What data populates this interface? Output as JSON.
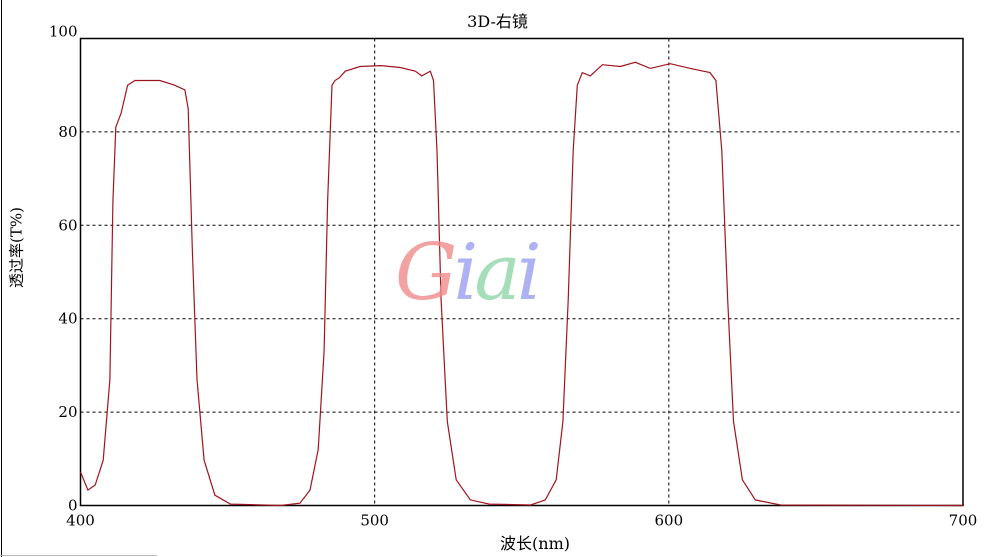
{
  "chart_data": {
    "type": "line",
    "title": "3D-右镜",
    "xlabel": "波长(nm)",
    "ylabel": "透过率(T%)",
    "xlim": [
      400,
      700
    ],
    "ylim": [
      0,
      100
    ],
    "xticks": [
      400,
      500,
      600,
      700
    ],
    "yticks": [
      0,
      20,
      40,
      60,
      80,
      100
    ],
    "grid": "dashed",
    "line_color": "#a0141e",
    "series": [
      {
        "x": [
          400,
          402.5,
          405,
          407.7,
          410,
          411,
          412,
          413.8,
          416,
          418.5,
          427,
          432,
          435.5,
          436.6,
          438,
          439.6,
          442,
          445.7,
          451,
          468,
          474.6,
          478,
          480.8,
          482.8,
          484,
          485.5,
          486.5,
          488,
          490,
          495,
          502,
          508.7,
          513.8,
          516,
          518.9,
          520,
          521.2,
          522.6,
          524.7,
          527.7,
          532.5,
          539,
          553,
          558,
          561.7,
          564,
          565.8,
          567.5,
          568.9,
          570.6,
          573.3,
          577.4,
          583.5,
          588.6,
          593.7,
          600.5,
          607.3,
          614,
          616,
          618,
          620,
          622,
          625,
          629.4,
          638,
          700
        ],
        "y": [
          7.2,
          3.3,
          4.4,
          9.7,
          27,
          65,
          81,
          84,
          90,
          91,
          91,
          90,
          89,
          85,
          55,
          27,
          9.7,
          2.2,
          0.3,
          0,
          0.5,
          3.3,
          12,
          33,
          65,
          90,
          91,
          91.6,
          93,
          94,
          94.2,
          93.8,
          93,
          92,
          93,
          91,
          76,
          44,
          18,
          5.5,
          1.2,
          0.3,
          0.1,
          1.2,
          5.5,
          18,
          44,
          76,
          90,
          92.7,
          92,
          94.4,
          94,
          94.9,
          93.6,
          94.6,
          93.6,
          92.7,
          91,
          76,
          44,
          18,
          5.5,
          1.2,
          0.1,
          0
        ]
      }
    ]
  },
  "watermark": {
    "letters": [
      "G",
      "i",
      "a",
      "i"
    ],
    "colors": [
      "#f08c8c",
      "#9aa0f0",
      "#8fd6a8",
      "#9aa0f0"
    ]
  }
}
